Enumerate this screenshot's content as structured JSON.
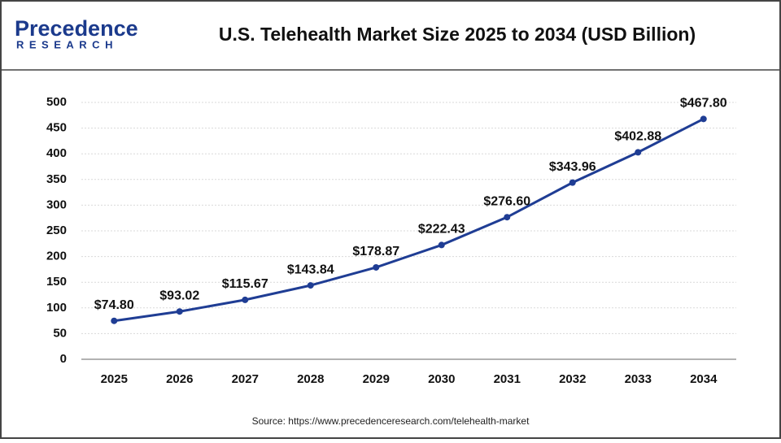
{
  "logo": {
    "name": "Precedence",
    "tagline": "RESEARCH"
  },
  "chart_data": {
    "type": "line",
    "title": "U.S. Telehealth Market Size 2025 to 2034 (USD Billion)",
    "categories": [
      "2025",
      "2026",
      "2027",
      "2028",
      "2029",
      "2030",
      "2031",
      "2032",
      "2033",
      "2034"
    ],
    "values": [
      74.8,
      93.02,
      115.67,
      143.84,
      178.87,
      222.43,
      276.6,
      343.96,
      402.88,
      467.8
    ],
    "value_labels": [
      "$74.80",
      "$93.02",
      "$115.67",
      "$143.84",
      "$178.87",
      "$222.43",
      "$276.60",
      "$343.96",
      "$402.88",
      "$467.80"
    ],
    "color": "#1f3d94",
    "ylim": [
      0,
      500
    ],
    "yticks": [
      0,
      50,
      100,
      150,
      200,
      250,
      300,
      350,
      400,
      450,
      500
    ],
    "grid": true,
    "source": "Source: https://www.precedenceresearch.com/telehealth-market"
  }
}
